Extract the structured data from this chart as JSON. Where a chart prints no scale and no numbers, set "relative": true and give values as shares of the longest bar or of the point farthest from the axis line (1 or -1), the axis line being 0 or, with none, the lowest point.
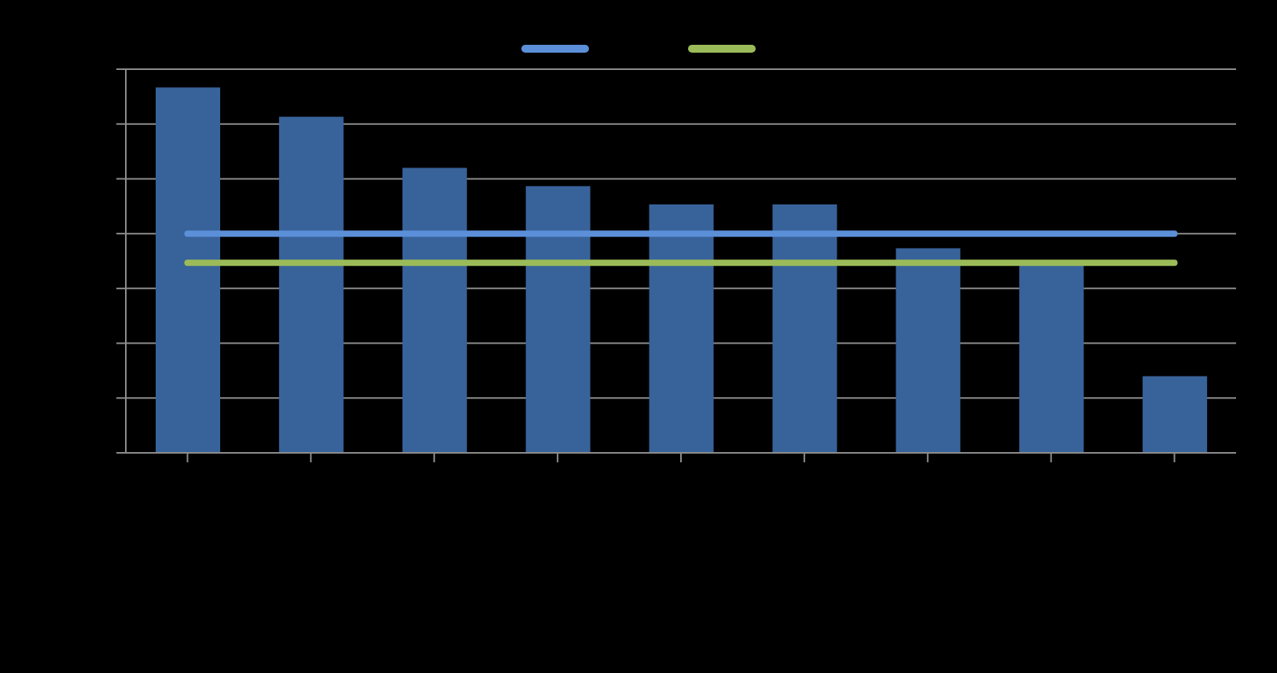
{
  "chart_data": {
    "type": "bar",
    "relative": true,
    "categories": [
      null,
      null,
      null,
      null,
      null,
      null,
      null,
      null,
      null
    ],
    "values": [
      1,
      0.92,
      0.78,
      0.73,
      0.68,
      0.68,
      0.56,
      0.52,
      0.21
    ],
    "color": "#38629a",
    "ref_lines": [
      {
        "axis": "y",
        "value": 0.6,
        "color": "#5b8fd8"
      },
      {
        "axis": "y",
        "value": 0.52,
        "color": "#9bbb59"
      }
    ],
    "grid": "y"
  }
}
